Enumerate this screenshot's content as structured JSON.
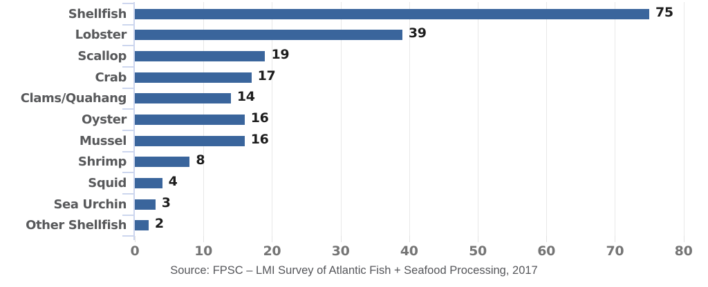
{
  "chart_data": {
    "type": "bar",
    "orientation": "horizontal",
    "title": "",
    "categories": [
      "Shellfish",
      "Lobster",
      "Scallop",
      "Crab",
      "Clams/Quahang",
      "Oyster",
      "Mussel",
      "Shrimp",
      "Squid",
      "Sea Urchin",
      "Other Shellfish"
    ],
    "values": [
      75,
      39,
      19,
      17,
      14,
      16,
      16,
      8,
      4,
      3,
      2
    ],
    "x_ticks": [
      0,
      10,
      20,
      30,
      40,
      50,
      60,
      70,
      80
    ],
    "xlim": [
      0,
      82.5
    ],
    "grid": "vertical",
    "legend_position": "none",
    "data_labels": true,
    "source": "Source: FPSC – LMI Survey of Atlantic Fish + Seafood Processing, 2017"
  },
  "colors": {
    "bar": "#3a659c",
    "gridline": "#e8e8e8",
    "axis": "#ccd6ee",
    "category_label": "#58595b",
    "value_label": "#1c1c1c",
    "tick_label": "#757575",
    "source_text": "#55565a",
    "background": "#ffffff"
  }
}
